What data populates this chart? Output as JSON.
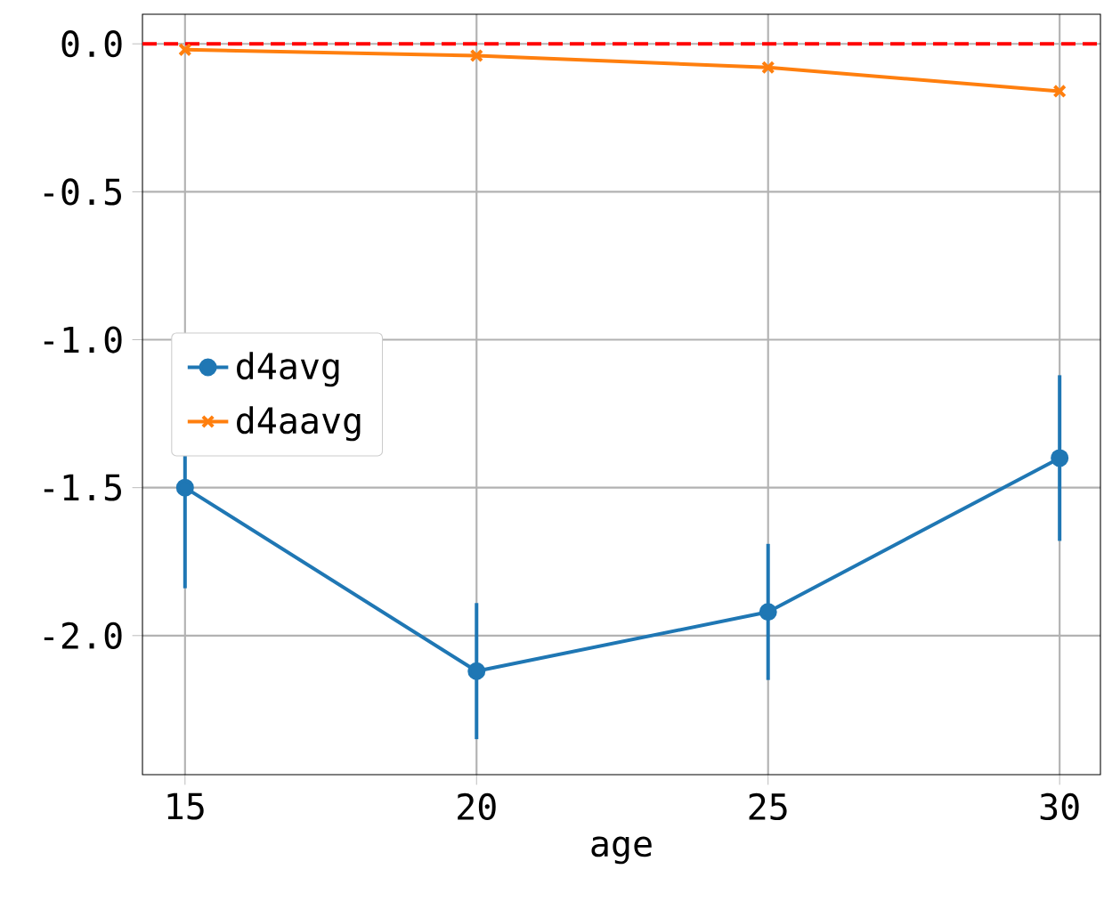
{
  "chart_data": {
    "type": "line",
    "xlabel": "age",
    "x": [
      15,
      20,
      25,
      30
    ],
    "series": [
      {
        "name": "d4avg",
        "color": "#1f77b4",
        "marker": "circle",
        "values": [
          -1.5,
          -2.12,
          -1.92,
          -1.4
        ],
        "errors": [
          0.34,
          0.23,
          0.23,
          0.28
        ]
      },
      {
        "name": "d4aavg",
        "color": "#ff7f0e",
        "marker": "cross",
        "values": [
          -0.02,
          -0.04,
          -0.08,
          -0.16
        ]
      }
    ],
    "xlim": [
      14.27,
      30.7
    ],
    "ylim": [
      -2.47,
      0.1
    ],
    "xticks": [
      15,
      20,
      25,
      30
    ],
    "yticks": [
      {
        "value": 0,
        "label": "0.0"
      },
      {
        "value": -0.5,
        "label": "-0.5"
      },
      {
        "value": -1,
        "label": "-1.0"
      },
      {
        "value": -1.5,
        "label": "-1.5"
      },
      {
        "value": -2,
        "label": "-2.0"
      }
    ],
    "ref_lines": [
      {
        "axis": "y",
        "value": 0,
        "color": "#ff0000",
        "line_style": "dashed"
      }
    ],
    "grid": true,
    "legend": "left",
    "line_style": "solid"
  }
}
